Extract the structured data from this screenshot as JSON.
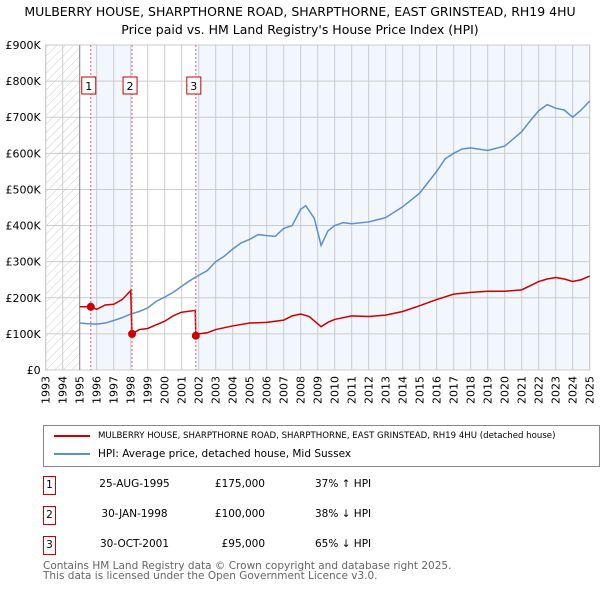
{
  "title": "MULBERRY HOUSE, SHARPTHORNE ROAD, SHARPTHORNE, EAST GRINSTEAD, RH19 4HU",
  "subtitle": "Price paid vs. HM Land Registry's House Price Index (HPI)",
  "chart_data": {
    "type": "line",
    "xlim": [
      1993,
      2025
    ],
    "ylim": [
      0,
      900000
    ],
    "y_ticks": [
      "£0",
      "£100K",
      "£200K",
      "£300K",
      "£400K",
      "£500K",
      "£600K",
      "£700K",
      "£800K",
      "£900K"
    ],
    "x_ticks": [
      "1993",
      "1994",
      "1995",
      "1996",
      "1997",
      "1998",
      "1999",
      "2000",
      "2001",
      "2002",
      "2003",
      "2004",
      "2005",
      "2006",
      "2007",
      "2008",
      "2009",
      "2010",
      "2011",
      "2012",
      "2013",
      "2014",
      "2015",
      "2016",
      "2017",
      "2018",
      "2019",
      "2020",
      "2021",
      "2022",
      "2023",
      "2024",
      "2025"
    ],
    "series": [
      {
        "name": "MULBERRY HOUSE, SHARPTHORNE ROAD, SHARPTHORNE, EAST GRINSTEAD, RH19 4HU (detached house)",
        "color": "#cc0000",
        "x": [
          1995,
          1995.65,
          1996,
          1996.5,
          1997,
          1997.5,
          1998.0,
          1998.08,
          1998.5,
          1999,
          1999.5,
          2000,
          2000.5,
          2001,
          2001.8,
          2001.83,
          2002,
          2002.5,
          2003,
          2004,
          2005,
          2006,
          2007,
          2007.5,
          2008,
          2008.5,
          2009.2,
          2009.6,
          2010,
          2011,
          2012,
          2013,
          2014,
          2015,
          2016,
          2017,
          2018,
          2019,
          2020,
          2021,
          2022,
          2022.5,
          2023,
          2023.5,
          2024,
          2024.5,
          2025
        ],
        "y": [
          175000,
          175000,
          168000,
          180000,
          182000,
          195000,
          220000,
          100000,
          112000,
          115000,
          125000,
          135000,
          150000,
          160000,
          165000,
          95000,
          100000,
          103000,
          112000,
          122000,
          130000,
          132000,
          138000,
          150000,
          155000,
          148000,
          120000,
          132000,
          140000,
          150000,
          148000,
          152000,
          162000,
          178000,
          195000,
          210000,
          215000,
          218000,
          218000,
          222000,
          245000,
          252000,
          256000,
          252000,
          245000,
          250000,
          260000
        ]
      },
      {
        "name": "HPI: Average price, detached house, Mid Sussex",
        "color": "#5b8fd0",
        "x": [
          1995,
          1995.5,
          1996,
          1996.5,
          1997,
          1997.5,
          1998,
          1998.5,
          1999,
          1999.5,
          2000,
          2000.5,
          2001,
          2001.5,
          2002,
          2002.5,
          2003,
          2003.5,
          2004,
          2004.5,
          2005,
          2005.5,
          2006,
          2006.5,
          2007,
          2007.5,
          2008,
          2008.3,
          2008.8,
          2009.2,
          2009.6,
          2010,
          2010.5,
          2011,
          2012,
          2013,
          2014,
          2015,
          2016,
          2016.5,
          2017,
          2017.5,
          2018,
          2019,
          2020,
          2020.5,
          2021,
          2021.5,
          2022,
          2022.5,
          2023,
          2023.5,
          2024,
          2024.5,
          2025
        ],
        "y": [
          130000,
          128000,
          127000,
          130000,
          137000,
          145000,
          155000,
          162000,
          172000,
          190000,
          202000,
          215000,
          232000,
          248000,
          262000,
          275000,
          300000,
          315000,
          335000,
          352000,
          362000,
          375000,
          372000,
          370000,
          392000,
          400000,
          445000,
          455000,
          420000,
          345000,
          385000,
          400000,
          408000,
          405000,
          410000,
          422000,
          452000,
          490000,
          550000,
          585000,
          600000,
          612000,
          615000,
          608000,
          620000,
          640000,
          660000,
          690000,
          718000,
          735000,
          725000,
          720000,
          700000,
          720000,
          745000
        ]
      }
    ],
    "sales": [
      {
        "label": "1",
        "x": 1995.65,
        "y": 175000
      },
      {
        "label": "2",
        "x": 1998.08,
        "y": 100000
      },
      {
        "label": "3",
        "x": 2001.83,
        "y": 95000
      }
    ],
    "grid": true
  },
  "legend": {
    "red": "MULBERRY HOUSE, SHARPTHORNE ROAD, SHARPTHORNE, EAST GRINSTEAD, RH19 4HU (detached house)",
    "blue": "HPI: Average price, detached house, Mid Sussex"
  },
  "transactions": [
    {
      "num": "1",
      "date": "25-AUG-1995",
      "price": "£175,000",
      "hpi": "37% ↑ HPI"
    },
    {
      "num": "2",
      "date": "30-JAN-1998",
      "price": "£100,000",
      "hpi": "38% ↓ HPI"
    },
    {
      "num": "3",
      "date": "30-OCT-2001",
      "price": "£95,000",
      "hpi": "65% ↓ HPI"
    }
  ],
  "footer": {
    "line1": "Contains HM Land Registry data © Crown copyright and database right 2025.",
    "line2": "This data is licensed under the Open Government Licence v3.0."
  }
}
